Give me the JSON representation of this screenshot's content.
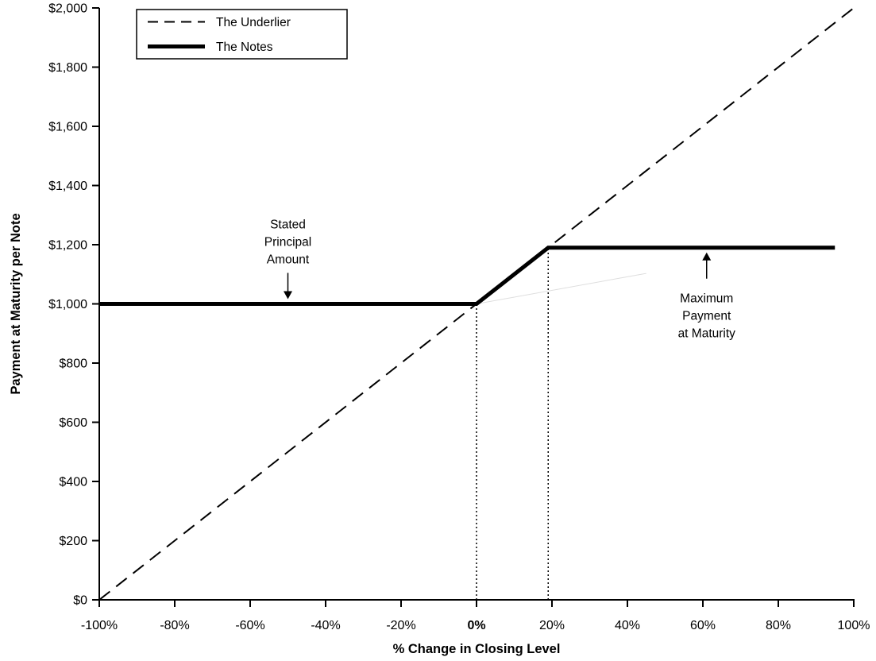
{
  "chart_data": {
    "type": "line",
    "title": "",
    "xlabel": "% Change in Closing Level",
    "ylabel": "Payment at Maturity per Note",
    "xlim": [
      -100,
      100
    ],
    "ylim": [
      0,
      2000
    ],
    "grid": false,
    "legend_position": "top-left",
    "x_ticks": [
      -100,
      -80,
      -60,
      -40,
      -20,
      0,
      20,
      40,
      60,
      80,
      100
    ],
    "x_tick_labels": [
      "-100%",
      "-80%",
      "-60%",
      "-40%",
      "-20%",
      "0%",
      "20%",
      "40%",
      "60%",
      "80%",
      "100%"
    ],
    "x_tick_bold_values": [
      0
    ],
    "y_ticks": [
      0,
      200,
      400,
      600,
      800,
      1000,
      1200,
      1400,
      1600,
      1800,
      2000
    ],
    "y_tick_labels": [
      "$0",
      "$200",
      "$400",
      "$600",
      "$800",
      "$1,000",
      "$1,200",
      "$1,400",
      "$1,600",
      "$1,800",
      "$2,000"
    ],
    "series": [
      {
        "name": "The Underlier",
        "line": "dashed",
        "width": 2,
        "color": "#000000",
        "points": [
          [
            -100,
            0
          ],
          [
            100,
            2000
          ]
        ]
      },
      {
        "name": "The Notes",
        "line": "solid",
        "width": 5,
        "color": "#000000",
        "points": [
          [
            -100,
            1000
          ],
          [
            0,
            1000
          ],
          [
            19,
            1190
          ],
          [
            95,
            1190
          ]
        ]
      }
    ],
    "extra_lines": [
      {
        "name": "faint-artifact-line",
        "color": "#dedede",
        "width": 1,
        "points": [
          [
            0,
            1000
          ],
          [
            45,
            1103
          ]
        ]
      }
    ],
    "reference_lines": [
      {
        "x": 0,
        "y": 1000
      },
      {
        "x": 19,
        "y": 1190
      }
    ],
    "annotations": [
      {
        "id": "stated-principal-amount",
        "lines": [
          "Stated",
          "Principal",
          "Amount"
        ],
        "x": -50,
        "target_y": 1000,
        "direction": "down"
      },
      {
        "id": "maximum-payment-at-maturity",
        "lines": [
          "Maximum",
          "Payment",
          "at Maturity"
        ],
        "x": 61,
        "target_y": 1190,
        "direction": "up"
      }
    ],
    "key_values": {
      "stated_principal_amount": 1000,
      "maximum_payment_at_maturity": 1190,
      "cap_percent_change": 19,
      "notes_line_end_percent": 95
    }
  }
}
